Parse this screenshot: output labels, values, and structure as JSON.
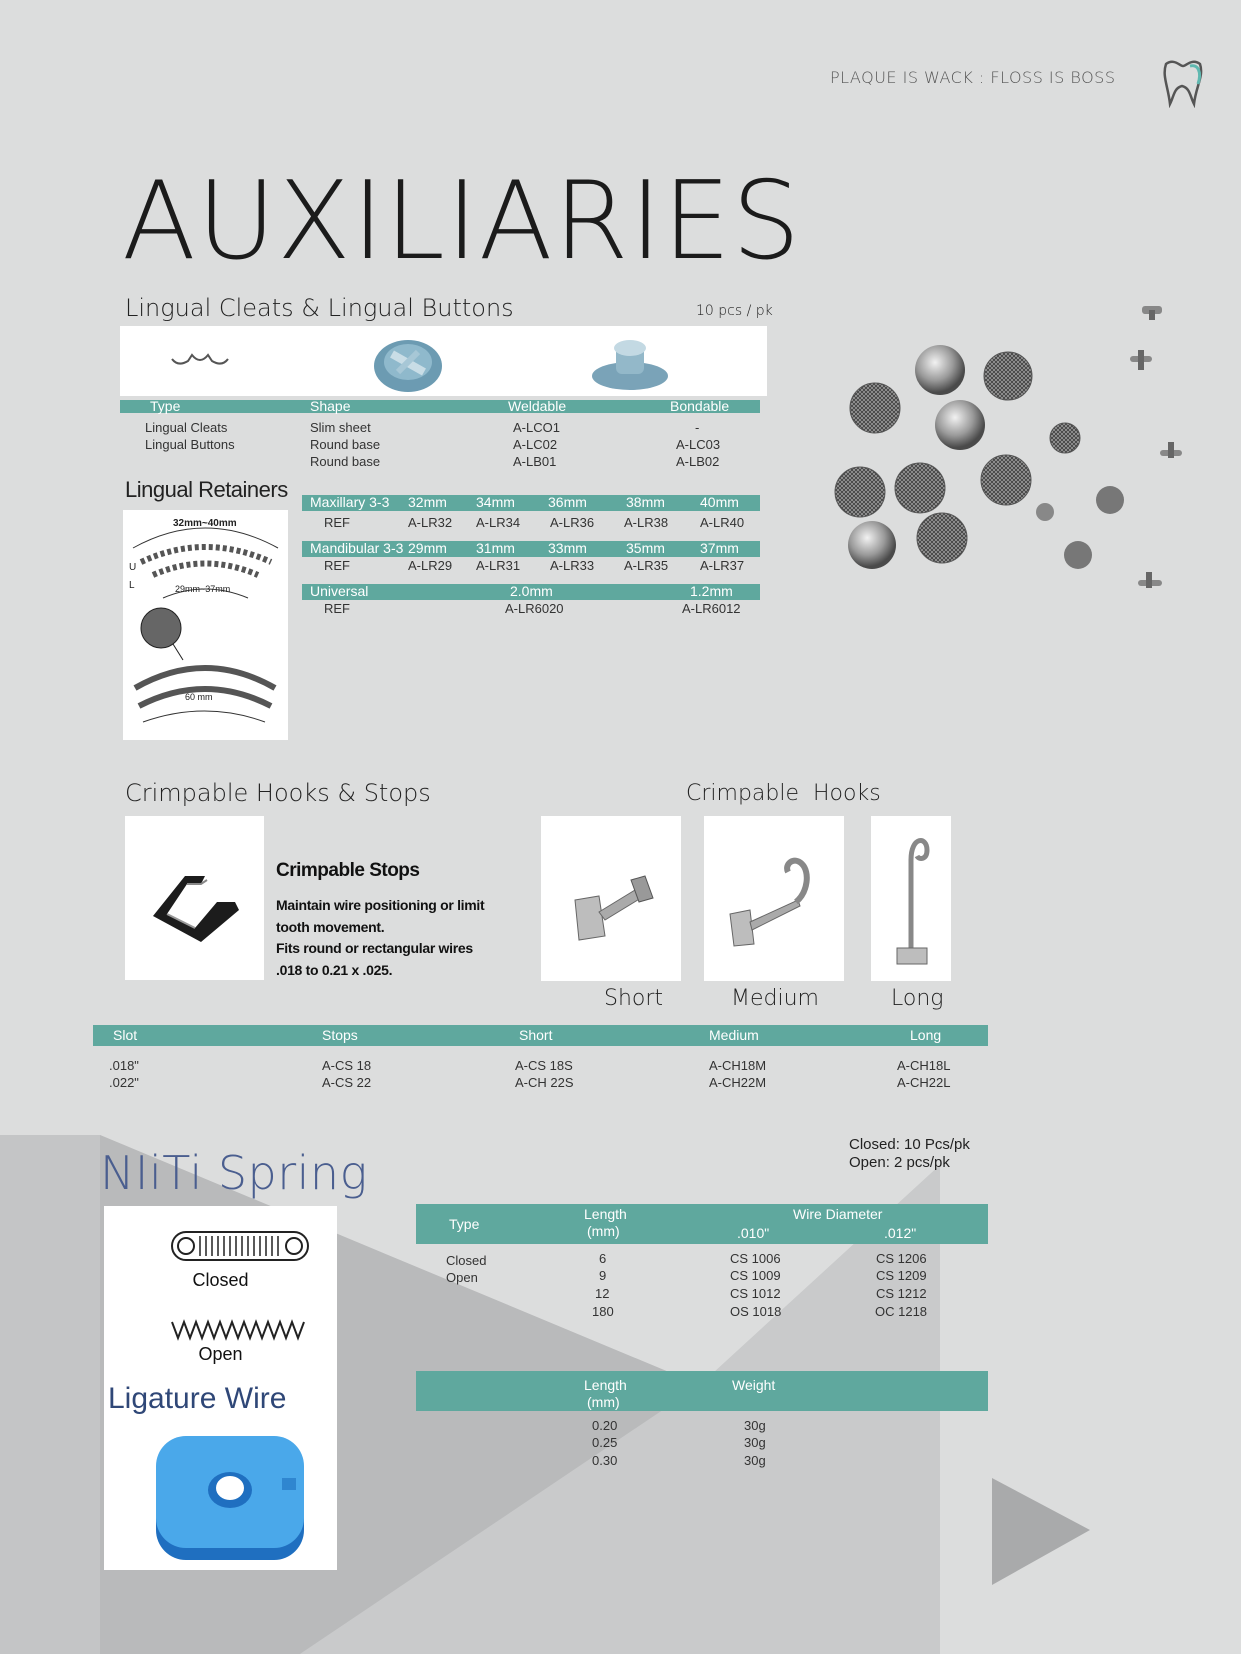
{
  "header": {
    "slogan": "PLAQUE IS WACK : FLOSS IS BOSS",
    "logo_icon": "tooth-logo-icon"
  },
  "title": "AUXILIARIES",
  "lingual_cleats": {
    "heading": "Lingual Cleats & Lingual Buttons",
    "pack": "10 pcs / pk",
    "columns": [
      "Type",
      "Shape",
      "Weldable",
      "Bondable"
    ],
    "rows": [
      [
        "Lingual Cleats",
        "Slim sheet",
        "A-LCO1",
        "-"
      ],
      [
        "Lingual Buttons",
        "Round base",
        "A-LC02",
        "A-LC03"
      ],
      [
        "",
        "Round base",
        "A-LB01",
        "A-LB02"
      ]
    ]
  },
  "lingual_retainers": {
    "heading": "Lingual Retainers",
    "diagram": {
      "top_label": "32mm~40mm",
      "mid_label": "29mm~37mm",
      "bottom_label": "60 mm",
      "u": "U",
      "l": "L"
    },
    "maxillary": {
      "header": [
        "Maxillary 3-3",
        "32mm",
        "34mm",
        "36mm",
        "38mm",
        "40mm"
      ],
      "ref": [
        "REF",
        "A-LR32",
        "A-LR34",
        "A-LR36",
        "A-LR38",
        "A-LR40"
      ]
    },
    "mandibular": {
      "header": [
        "Mandibular 3-3",
        "29mm",
        "31mm",
        "33mm",
        "35mm",
        "37mm"
      ],
      "ref": [
        "REF",
        "A-LR29",
        "A-LR31",
        "A-LR33",
        "A-LR35",
        "A-LR37"
      ]
    },
    "universal": {
      "header": [
        "Universal",
        "2.0mm",
        "1.2mm"
      ],
      "ref": [
        "REF",
        "A-LR6020",
        "A-LR6012"
      ]
    }
  },
  "crimpable": {
    "heading": "Crimpable Hooks & Stops",
    "hooks_heading": "Crimpable  Hooks",
    "stops_title": "Crimpable Stops",
    "stops_desc": [
      "Maintain wire positioning or limit",
      "tooth movement.",
      "Fits round or rectangular wires",
      ".018 to 0.21 x .025."
    ],
    "hook_labels": [
      "Short",
      "Medium",
      "Long"
    ],
    "columns": [
      "Slot",
      "Stops",
      "Short",
      "Medium",
      "Long"
    ],
    "rows": [
      [
        ".018\"",
        "A-CS 18",
        "A-CS 18S",
        "A-CH18M",
        "A-CH18L"
      ],
      [
        ".022\"",
        "A-CS 22",
        "A-CH 22S",
        "A-CH22M",
        "A-CH22L"
      ]
    ]
  },
  "niti": {
    "heading": "NIiTi Spring",
    "pack_lines": [
      "Closed: 10 Pcs/pk",
      "Open: 2 pcs/pk"
    ],
    "img_closed": "Closed",
    "img_open": "Open",
    "hdr_type": "Type",
    "hdr_length": [
      "Length",
      "(mm)"
    ],
    "hdr_wire": "Wire Diameter",
    "hdr_010": ".010\"",
    "hdr_012": ".012\"",
    "types": [
      "Closed",
      "Open"
    ],
    "lengths": [
      "6",
      "9",
      "12",
      "180"
    ],
    "d010": [
      "CS 1006",
      "CS 1009",
      "CS 1012",
      "OS 1018"
    ],
    "d012": [
      "CS 1206",
      "CS 1209",
      "CS 1212",
      "OC 1218"
    ]
  },
  "ligature": {
    "heading": "Ligature Wire",
    "hdr_length": [
      "Length",
      "(mm)"
    ],
    "hdr_weight": "Weight",
    "lengths": [
      "0.20",
      "0.25",
      "0.30"
    ],
    "weights": [
      "30g",
      "30g",
      "30g"
    ]
  },
  "colors": {
    "teal": "#5fa89e",
    "background": "#dcdddd",
    "niti_blue": "#4a5e8f",
    "ligature_blue": "#3ba0e0"
  }
}
